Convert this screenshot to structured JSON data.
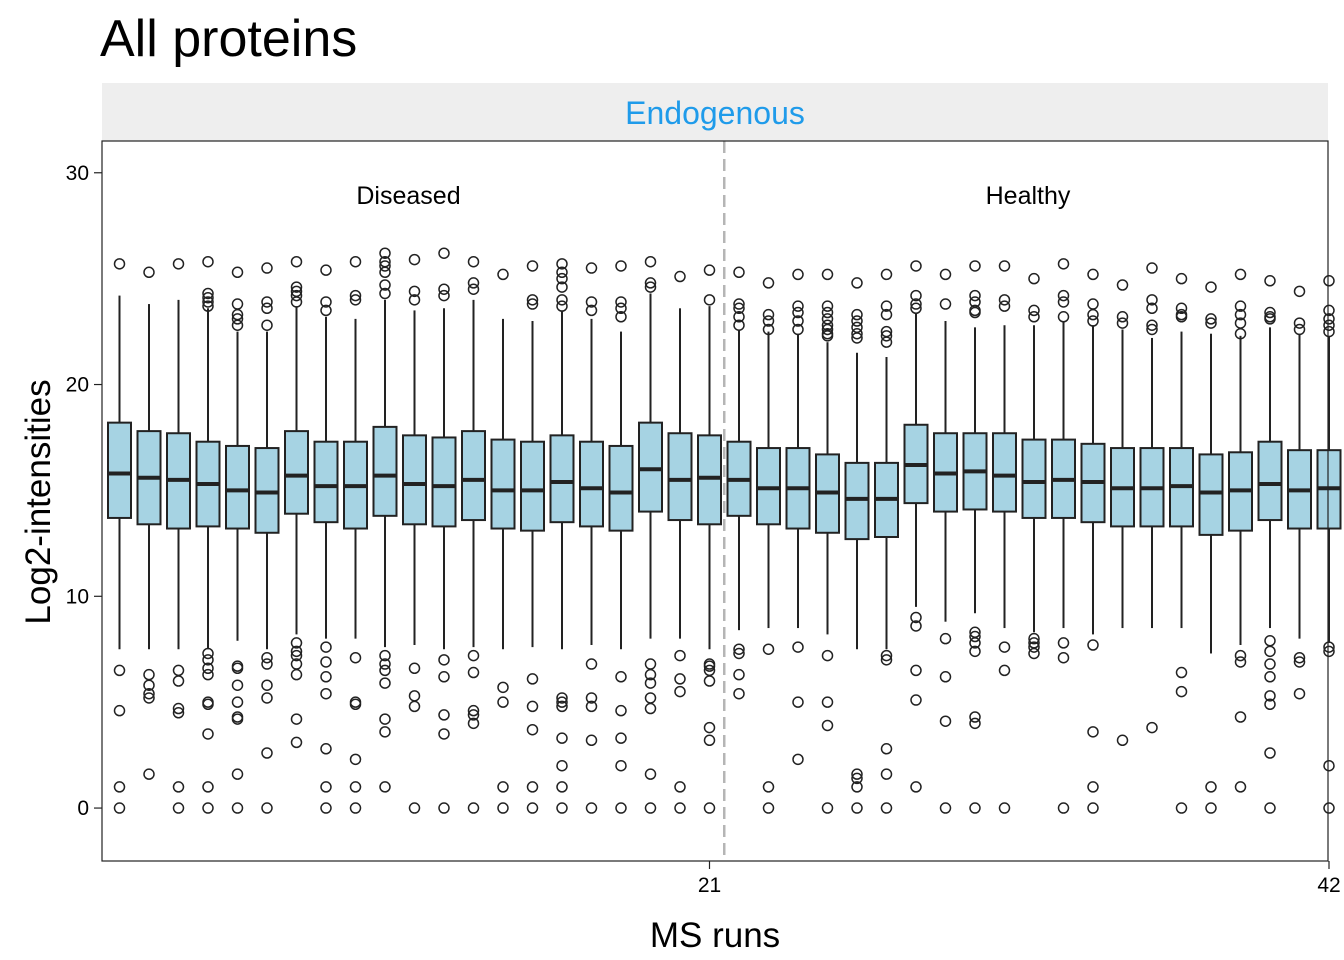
{
  "colors": {
    "box_fill": "#a6d3e3",
    "box_stroke": "#222222",
    "strip_bg": "#eeeeee",
    "strip_text": "#1f9bea",
    "separator": "#b5b5b5"
  },
  "chart_data": {
    "type": "boxplot",
    "title": "All proteins",
    "facet": "Endogenous",
    "xlabel": "MS runs",
    "ylabel": "Log2-intensities",
    "ylim": [
      -2.5,
      31.5
    ],
    "yticks": [
      0,
      10,
      20,
      30
    ],
    "xticks": [
      "21",
      "42"
    ],
    "separator_after_run": 21,
    "group_labels": [
      {
        "label": "Diseased",
        "center_run": 11
      },
      {
        "label": "Healthy",
        "center_run": 32
      }
    ],
    "runs": [
      {
        "run": 1,
        "q1": 13.7,
        "median": 15.8,
        "q3": 18.2,
        "whisker_low": 7.5,
        "whisker_high": 24.2,
        "outliers": [
          25.7,
          6.5,
          4.6,
          1,
          0
        ]
      },
      {
        "run": 2,
        "q1": 13.4,
        "median": 15.6,
        "q3": 17.8,
        "whisker_low": 7.5,
        "whisker_high": 23.8,
        "outliers": [
          25.3,
          6.3,
          5.8,
          5.4,
          5.2,
          1.6
        ]
      },
      {
        "run": 3,
        "q1": 13.2,
        "median": 15.5,
        "q3": 17.7,
        "whisker_low": 7.5,
        "whisker_high": 24.0,
        "outliers": [
          25.7,
          6.5,
          6.0,
          4.7,
          4.5,
          1,
          0
        ]
      },
      {
        "run": 4,
        "q1": 13.3,
        "median": 15.3,
        "q3": 17.3,
        "whisker_low": 7.5,
        "whisker_high": 23.6,
        "outliers": [
          25.8,
          24.3,
          24.1,
          23.9,
          23.7,
          7.3,
          7.0,
          6.6,
          6.3,
          5.0,
          4.9,
          3.5,
          1,
          0
        ]
      },
      {
        "run": 5,
        "q1": 13.2,
        "median": 15.0,
        "q3": 17.1,
        "whisker_low": 7.9,
        "whisker_high": 22.5,
        "outliers": [
          25.3,
          23.8,
          23.3,
          23.1,
          22.8,
          6.7,
          6.6,
          5.8,
          5.0,
          4.3,
          4.2,
          1.6,
          0
        ]
      },
      {
        "run": 6,
        "q1": 13.0,
        "median": 14.9,
        "q3": 17.0,
        "whisker_low": 7.5,
        "whisker_high": 22.5,
        "outliers": [
          25.5,
          23.9,
          23.6,
          22.8,
          7.1,
          6.8,
          5.8,
          5.2,
          2.6,
          0
        ]
      },
      {
        "run": 7,
        "q1": 13.9,
        "median": 15.7,
        "q3": 17.8,
        "whisker_low": 8.2,
        "whisker_high": 23.7,
        "outliers": [
          25.8,
          24.6,
          24.4,
          24.2,
          23.9,
          7.8,
          7.4,
          7.2,
          6.8,
          6.3,
          4.2,
          3.1
        ]
      },
      {
        "run": 8,
        "q1": 13.5,
        "median": 15.2,
        "q3": 17.3,
        "whisker_low": 8.0,
        "whisker_high": 23.2,
        "outliers": [
          25.4,
          23.9,
          23.5,
          7.6,
          6.9,
          6.2,
          5.4,
          2.8,
          1,
          0
        ]
      },
      {
        "run": 9,
        "q1": 13.2,
        "median": 15.2,
        "q3": 17.3,
        "whisker_low": 8.0,
        "whisker_high": 23.1,
        "outliers": [
          25.8,
          24.2,
          24.0,
          7.1,
          5.0,
          4.9,
          2.3,
          1,
          0
        ]
      },
      {
        "run": 10,
        "q1": 13.8,
        "median": 15.7,
        "q3": 18.0,
        "whisker_low": 7.6,
        "whisker_high": 24.0,
        "outliers": [
          26.2,
          25.8,
          25.6,
          25.3,
          24.7,
          24.3,
          7.2,
          6.8,
          6.5,
          5.9,
          4.2,
          3.6,
          1
        ]
      },
      {
        "run": 11,
        "q1": 13.4,
        "median": 15.3,
        "q3": 17.6,
        "whisker_low": 7.7,
        "whisker_high": 23.5,
        "outliers": [
          25.9,
          24.4,
          24.0,
          6.6,
          5.3,
          4.8,
          0
        ]
      },
      {
        "run": 12,
        "q1": 13.3,
        "median": 15.2,
        "q3": 17.5,
        "whisker_low": 7.5,
        "whisker_high": 23.6,
        "outliers": [
          26.2,
          24.5,
          24.2,
          7.0,
          6.2,
          4.4,
          3.5,
          0
        ]
      },
      {
        "run": 13,
        "q1": 13.6,
        "median": 15.5,
        "q3": 17.8,
        "whisker_low": 7.6,
        "whisker_high": 24.0,
        "outliers": [
          25.8,
          24.8,
          24.5,
          7.2,
          6.4,
          4.6,
          4.4,
          4.0,
          0
        ]
      },
      {
        "run": 14,
        "q1": 13.2,
        "median": 15.0,
        "q3": 17.4,
        "whisker_low": 7.5,
        "whisker_high": 23.1,
        "outliers": [
          25.2,
          5.7,
          5.0,
          1,
          0
        ]
      },
      {
        "run": 15,
        "q1": 13.1,
        "median": 15.0,
        "q3": 17.3,
        "whisker_low": 7.6,
        "whisker_high": 23.0,
        "outliers": [
          25.6,
          24.0,
          23.8,
          6.1,
          4.8,
          3.7,
          1,
          0
        ]
      },
      {
        "run": 16,
        "q1": 13.5,
        "median": 15.4,
        "q3": 17.6,
        "whisker_low": 7.5,
        "whisker_high": 23.5,
        "outliers": [
          25.7,
          25.3,
          25.0,
          24.6,
          24.0,
          23.7,
          5.2,
          5.0,
          4.8,
          3.3,
          2.0,
          1,
          0
        ]
      },
      {
        "run": 17,
        "q1": 13.3,
        "median": 15.1,
        "q3": 17.3,
        "whisker_low": 7.7,
        "whisker_high": 23.1,
        "outliers": [
          25.5,
          23.9,
          23.5,
          6.8,
          5.2,
          4.8,
          3.2,
          0
        ]
      },
      {
        "run": 18,
        "q1": 13.1,
        "median": 14.9,
        "q3": 17.1,
        "whisker_low": 7.5,
        "whisker_high": 22.5,
        "outliers": [
          25.6,
          23.9,
          23.6,
          23.2,
          6.2,
          4.6,
          3.3,
          2.0,
          0
        ]
      },
      {
        "run": 19,
        "q1": 14.0,
        "median": 16.0,
        "q3": 18.2,
        "whisker_low": 8.0,
        "whisker_high": 24.3,
        "outliers": [
          25.8,
          24.8,
          24.6,
          6.8,
          6.3,
          5.9,
          5.2,
          4.7,
          1.6,
          0
        ]
      },
      {
        "run": 20,
        "q1": 13.6,
        "median": 15.5,
        "q3": 17.7,
        "whisker_low": 8.0,
        "whisker_high": 23.6,
        "outliers": [
          25.1,
          7.2,
          6.1,
          5.5,
          1,
          0
        ]
      },
      {
        "run": 21,
        "q1": 13.4,
        "median": 15.6,
        "q3": 17.6,
        "whisker_low": 7.5,
        "whisker_high": 23.7,
        "outliers": [
          25.4,
          24.0,
          6.8,
          6.7,
          6.5,
          6.0,
          3.8,
          3.2,
          0
        ]
      },
      {
        "run": 22,
        "q1": 13.8,
        "median": 15.5,
        "q3": 17.3,
        "whisker_low": 8.4,
        "whisker_high": 22.6,
        "outliers": [
          25.3,
          23.8,
          23.6,
          23.2,
          22.8,
          7.5,
          7.3,
          6.3,
          5.4
        ]
      },
      {
        "run": 23,
        "q1": 13.4,
        "median": 15.1,
        "q3": 17.0,
        "whisker_low": 8.5,
        "whisker_high": 22.5,
        "outliers": [
          24.8,
          23.3,
          23.0,
          22.6,
          7.5,
          1,
          0
        ]
      },
      {
        "run": 24,
        "q1": 13.2,
        "median": 15.1,
        "q3": 17.0,
        "whisker_low": 8.5,
        "whisker_high": 22.4,
        "outliers": [
          25.2,
          23.7,
          23.4,
          23.0,
          22.6,
          7.6,
          5.0,
          2.3
        ]
      },
      {
        "run": 25,
        "q1": 13.0,
        "median": 14.9,
        "q3": 16.7,
        "whisker_low": 8.2,
        "whisker_high": 22.0,
        "outliers": [
          25.2,
          23.7,
          23.4,
          23.1,
          22.8,
          22.6,
          22.4,
          22.3,
          7.2,
          5.0,
          3.9,
          0
        ]
      },
      {
        "run": 26,
        "q1": 12.7,
        "median": 14.6,
        "q3": 16.3,
        "whisker_low": 7.5,
        "whisker_high": 21.5,
        "outliers": [
          24.8,
          23.3,
          23.0,
          22.7,
          22.4,
          22.2,
          1.6,
          1.4,
          1,
          0
        ]
      },
      {
        "run": 27,
        "q1": 12.8,
        "median": 14.6,
        "q3": 16.3,
        "whisker_low": 7.5,
        "whisker_high": 21.3,
        "outliers": [
          25.2,
          23.7,
          23.3,
          22.5,
          22.3,
          22.0,
          7.2,
          7.0,
          2.8,
          1.6,
          0
        ]
      },
      {
        "run": 28,
        "q1": 14.4,
        "median": 16.2,
        "q3": 18.1,
        "whisker_low": 9.5,
        "whisker_high": 23.4,
        "outliers": [
          25.6,
          24.2,
          23.8,
          23.6,
          9.0,
          8.6,
          6.5,
          5.1,
          1
        ]
      },
      {
        "run": 29,
        "q1": 14.0,
        "median": 15.8,
        "q3": 17.7,
        "whisker_low": 8.8,
        "whisker_high": 23.0,
        "outliers": [
          25.2,
          23.8,
          8.0,
          6.2,
          4.1,
          0
        ]
      },
      {
        "run": 30,
        "q1": 14.1,
        "median": 15.9,
        "q3": 17.7,
        "whisker_low": 9.2,
        "whisker_high": 22.7,
        "outliers": [
          25.6,
          24.2,
          23.9,
          23.5,
          23.4,
          8.3,
          8.1,
          7.8,
          7.4,
          4.3,
          4.0,
          0
        ]
      },
      {
        "run": 31,
        "q1": 14.0,
        "median": 15.7,
        "q3": 17.7,
        "whisker_low": 8.5,
        "whisker_high": 22.8,
        "outliers": [
          25.6,
          24.0,
          23.7,
          7.6,
          6.5,
          0
        ]
      },
      {
        "run": 32,
        "q1": 13.7,
        "median": 15.4,
        "q3": 17.4,
        "whisker_low": 8.3,
        "whisker_high": 22.8,
        "outliers": [
          25.0,
          23.5,
          23.2,
          8.0,
          7.8,
          7.6,
          7.3
        ]
      },
      {
        "run": 33,
        "q1": 13.7,
        "median": 15.5,
        "q3": 17.4,
        "whisker_low": 8.5,
        "whisker_high": 23.0,
        "outliers": [
          25.7,
          24.2,
          23.9,
          23.2,
          7.8,
          7.1,
          0
        ]
      },
      {
        "run": 34,
        "q1": 13.5,
        "median": 15.4,
        "q3": 17.2,
        "whisker_low": 8.2,
        "whisker_high": 22.8,
        "outliers": [
          25.2,
          23.8,
          23.3,
          23.0,
          7.7,
          3.6,
          1,
          0
        ]
      },
      {
        "run": 35,
        "q1": 13.3,
        "median": 15.1,
        "q3": 17.0,
        "whisker_low": 8.5,
        "whisker_high": 22.6,
        "outliers": [
          24.7,
          23.2,
          22.9,
          3.2
        ]
      },
      {
        "run": 36,
        "q1": 13.3,
        "median": 15.1,
        "q3": 17.0,
        "whisker_low": 8.5,
        "whisker_high": 22.2,
        "outliers": [
          25.5,
          24.0,
          23.6,
          22.8,
          22.6,
          3.8
        ]
      },
      {
        "run": 37,
        "q1": 13.3,
        "median": 15.2,
        "q3": 17.0,
        "whisker_low": 8.5,
        "whisker_high": 22.5,
        "outliers": [
          25.0,
          23.6,
          23.3,
          23.2,
          6.4,
          5.5,
          0
        ]
      },
      {
        "run": 38,
        "q1": 12.9,
        "median": 14.9,
        "q3": 16.7,
        "whisker_low": 7.3,
        "whisker_high": 22.4,
        "outliers": [
          24.6,
          23.1,
          22.9,
          1,
          0
        ]
      },
      {
        "run": 39,
        "q1": 13.1,
        "median": 15.0,
        "q3": 16.8,
        "whisker_low": 7.7,
        "whisker_high": 22.3,
        "outliers": [
          25.2,
          23.7,
          23.3,
          22.9,
          22.4,
          7.2,
          6.9,
          4.3,
          1
        ]
      },
      {
        "run": 40,
        "q1": 13.6,
        "median": 15.3,
        "q3": 17.3,
        "whisker_low": 8.5,
        "whisker_high": 22.7,
        "outliers": [
          24.9,
          23.4,
          23.2,
          23.1,
          7.9,
          7.4,
          6.8,
          6.2,
          5.3,
          4.9,
          2.6,
          0
        ]
      },
      {
        "run": 41,
        "q1": 13.2,
        "median": 15.0,
        "q3": 16.9,
        "whisker_low": 8.0,
        "whisker_high": 22.4,
        "outliers": [
          24.4,
          22.9,
          22.6,
          7.1,
          6.9,
          5.4
        ]
      },
      {
        "run": 42,
        "q1": 13.2,
        "median": 15.1,
        "q3": 16.9,
        "whisker_low": 7.8,
        "whisker_high": 22.3,
        "outliers": [
          24.9,
          23.5,
          23.1,
          22.8,
          22.5,
          7.6,
          7.4,
          2.0,
          0
        ]
      }
    ]
  }
}
